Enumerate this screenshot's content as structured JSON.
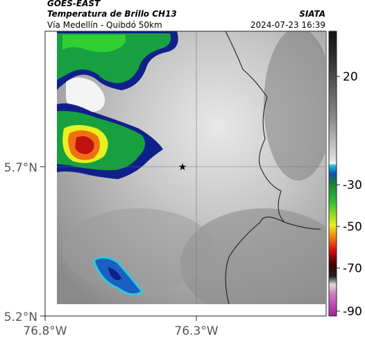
{
  "header": {
    "satellite": "GOES-EAST",
    "product": "Temperatura de Brillo CH13",
    "organization": "SIATA",
    "route": "Vía Medellín - Quibdó 50km",
    "timestamp": "2024-07-23 16:39"
  },
  "map": {
    "lat_ticks": [
      "5.7°N",
      "5.2°N"
    ],
    "lon_ticks": [
      "76.8°W",
      "76.3°W"
    ]
  },
  "colorbar": {
    "ticks": [
      "20",
      "-30",
      "-50",
      "-70",
      "-90"
    ]
  }
}
